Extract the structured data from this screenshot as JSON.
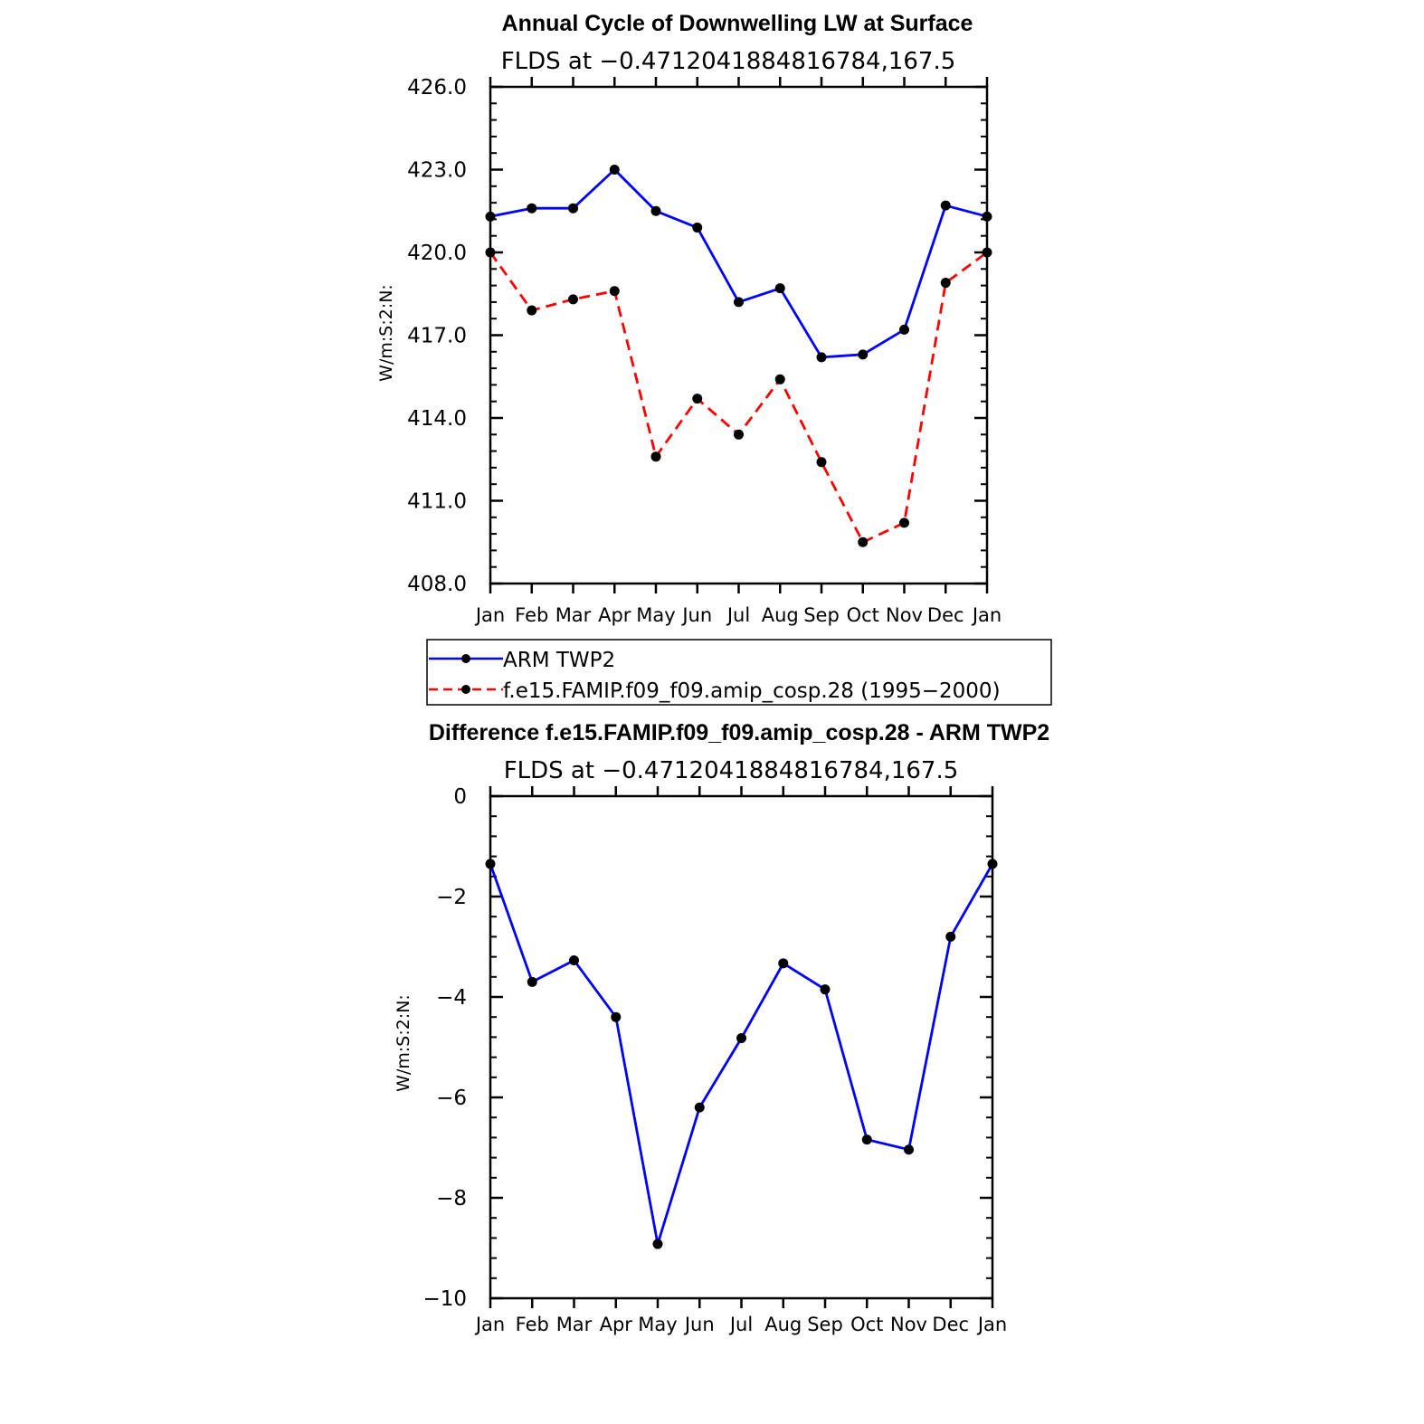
{
  "chart_data": [
    {
      "type": "line",
      "title": "Annual Cycle of Downwelling LW at Surface",
      "subtitle": "FLDS at −0.4712041884816784,167.5",
      "ylabel": "W/m:S:2:N:",
      "xlabel": "",
      "categories": [
        "Jan",
        "Feb",
        "Mar",
        "Apr",
        "May",
        "Jun",
        "Jul",
        "Aug",
        "Sep",
        "Oct",
        "Nov",
        "Dec",
        "Jan"
      ],
      "ylim": [
        408.0,
        426.0
      ],
      "yticks": [
        "408.0",
        "411.0",
        "414.0",
        "417.0",
        "420.0",
        "423.0",
        "426.0"
      ],
      "grid": false,
      "legend_position": "below",
      "series": [
        {
          "name": "ARM TWP2",
          "color": "#0000ff",
          "dash": "solid",
          "values": [
            421.3,
            421.6,
            421.6,
            423.0,
            421.5,
            420.9,
            418.2,
            418.7,
            416.2,
            416.3,
            417.2,
            421.7,
            421.3
          ]
        },
        {
          "name": "f.e15.FAMIP.f09_f09.amip_cosp.28 (1995−2000)",
          "color": "#ff0000",
          "dash": "dashed",
          "values": [
            420.0,
            417.9,
            418.3,
            418.6,
            412.6,
            414.7,
            413.4,
            415.4,
            412.4,
            409.5,
            410.2,
            418.9,
            420.0
          ]
        }
      ]
    },
    {
      "type": "line",
      "title": "Difference f.e15.FAMIP.f09_f09.amip_cosp.28 - ARM TWP2",
      "subtitle": "FLDS at −0.4712041884816784,167.5",
      "ylabel": "W/m:S:2:N:",
      "xlabel": "",
      "categories": [
        "Jan",
        "Feb",
        "Mar",
        "Apr",
        "May",
        "Jun",
        "Jul",
        "Aug",
        "Sep",
        "Oct",
        "Nov",
        "Dec",
        "Jan"
      ],
      "ylim": [
        -10,
        0
      ],
      "yticks": [
        "−10",
        "−8",
        "−6",
        "−4",
        "−2",
        "0"
      ],
      "grid": false,
      "series": [
        {
          "color": "#0000ff",
          "dash": "solid",
          "values": [
            -1.35,
            -3.7,
            -3.27,
            -4.4,
            -8.92,
            -6.2,
            -4.82,
            -3.33,
            -3.85,
            -6.84,
            -7.04,
            -2.8,
            -1.35
          ]
        }
      ]
    }
  ]
}
